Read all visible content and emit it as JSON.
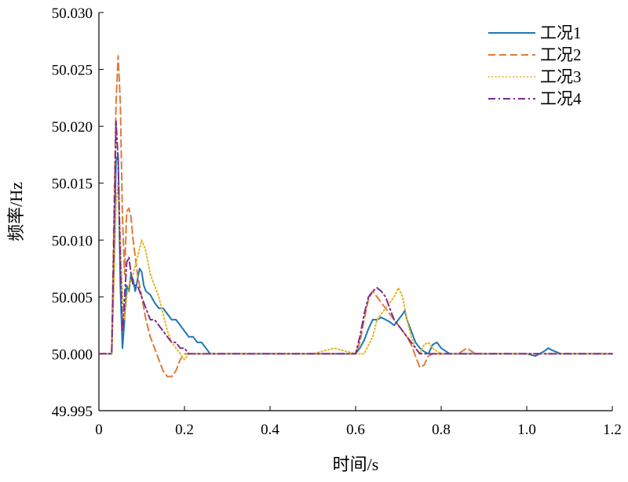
{
  "chart_data": {
    "type": "line",
    "xlabel": "时间/s",
    "ylabel": "频率/Hz",
    "xlim": [
      0,
      1.2
    ],
    "ylim": [
      49.995,
      50.03
    ],
    "x_ticks": [
      0,
      0.2,
      0.4,
      0.6,
      0.8,
      1.0,
      1.2
    ],
    "x_tick_labels": [
      "0",
      "0.2",
      "0.4",
      "0.6",
      "0.8",
      "1.0",
      "1.2"
    ],
    "y_ticks": [
      49.995,
      50.0,
      50.005,
      50.01,
      50.015,
      50.02,
      50.025,
      50.03
    ],
    "y_tick_labels": [
      "49.995",
      "50.000",
      "50.005",
      "50.010",
      "50.015",
      "50.020",
      "50.025",
      "50.030"
    ],
    "grid": false,
    "legend_position": "top-right",
    "series": [
      {
        "name": "工况1",
        "color": "#1f77b4",
        "dash": "solid",
        "x": [
          0,
          0.025,
          0.03,
          0.035,
          0.04,
          0.045,
          0.05,
          0.055,
          0.06,
          0.065,
          0.07,
          0.075,
          0.08,
          0.085,
          0.09,
          0.095,
          0.1,
          0.105,
          0.11,
          0.12,
          0.13,
          0.14,
          0.15,
          0.16,
          0.17,
          0.18,
          0.19,
          0.2,
          0.21,
          0.22,
          0.23,
          0.24,
          0.25,
          0.26,
          0.28,
          0.3,
          0.32,
          0.35,
          0.4,
          0.45,
          0.5,
          0.55,
          0.6,
          0.61,
          0.62,
          0.63,
          0.64,
          0.65,
          0.66,
          0.67,
          0.68,
          0.69,
          0.7,
          0.71,
          0.715,
          0.72,
          0.73,
          0.74,
          0.75,
          0.76,
          0.77,
          0.78,
          0.79,
          0.8,
          0.82,
          0.85,
          0.9,
          0.95,
          1.0,
          1.02,
          1.04,
          1.05,
          1.06,
          1.08,
          1.1,
          1.15,
          1.2
        ],
        "values": [
          50.0,
          50.0,
          50.0,
          50.008,
          50.017,
          50.0175,
          50.006,
          50.0005,
          50.003,
          50.006,
          50.0055,
          50.007,
          50.0065,
          50.0055,
          50.0065,
          50.0075,
          50.0072,
          50.006,
          50.0055,
          50.0052,
          50.0045,
          50.004,
          50.004,
          50.0035,
          50.003,
          50.003,
          50.0025,
          50.002,
          50.0015,
          50.0015,
          50.001,
          50.001,
          50.0005,
          50.0,
          50.0,
          50.0,
          50.0,
          50.0,
          50.0,
          50.0,
          50.0,
          50.0,
          50.0,
          50.0005,
          50.0012,
          50.0022,
          50.003,
          50.003,
          50.0032,
          50.003,
          50.0028,
          50.0025,
          50.003,
          50.0035,
          50.0038,
          50.003,
          50.002,
          50.001,
          50.0005,
          50.0002,
          50.0,
          50.0008,
          50.001,
          50.0005,
          50.0,
          50.0,
          50.0,
          50.0,
          50.0,
          49.9998,
          50.0002,
          50.0005,
          50.0003,
          50.0,
          50.0,
          50.0,
          50.0
        ]
      },
      {
        "name": "工况2",
        "color": "#e07b39",
        "dash": "dashed",
        "x": [
          0,
          0.025,
          0.03,
          0.035,
          0.04,
          0.045,
          0.05,
          0.055,
          0.06,
          0.065,
          0.07,
          0.075,
          0.08,
          0.09,
          0.1,
          0.11,
          0.12,
          0.13,
          0.14,
          0.15,
          0.16,
          0.17,
          0.18,
          0.19,
          0.2,
          0.21,
          0.22,
          0.23,
          0.24,
          0.25,
          0.27,
          0.3,
          0.35,
          0.4,
          0.45,
          0.5,
          0.55,
          0.6,
          0.61,
          0.62,
          0.63,
          0.64,
          0.65,
          0.66,
          0.67,
          0.68,
          0.69,
          0.7,
          0.71,
          0.72,
          0.73,
          0.74,
          0.75,
          0.76,
          0.77,
          0.78,
          0.8,
          0.82,
          0.84,
          0.86,
          0.88,
          0.9,
          0.95,
          1.0,
          1.05,
          1.1,
          1.15,
          1.2
        ],
        "values": [
          50.0,
          50.0,
          50.0,
          50.012,
          50.022,
          50.0262,
          50.022,
          50.012,
          50.007,
          50.0125,
          50.0128,
          50.012,
          50.01,
          50.007,
          50.005,
          50.003,
          50.0015,
          50.0005,
          49.9995,
          49.9985,
          49.998,
          49.998,
          49.9985,
          49.9995,
          50.0,
          50.0,
          50.0,
          50.0,
          50.0,
          50.0,
          50.0,
          50.0,
          50.0,
          50.0,
          50.0,
          50.0,
          50.0,
          50.0,
          50.001,
          50.003,
          50.0048,
          50.0055,
          50.005,
          50.0045,
          50.004,
          50.0035,
          50.003,
          50.0025,
          50.002,
          50.0015,
          50.0008,
          49.9998,
          49.9988,
          49.999,
          49.9998,
          50.0,
          50.0,
          50.0,
          50.0,
          50.0005,
          50.0,
          50.0,
          50.0,
          50.0,
          50.0,
          50.0,
          50.0,
          50.0
        ]
      },
      {
        "name": "工况3",
        "color": "#e6b422",
        "dash": "dotted",
        "x": [
          0,
          0.025,
          0.03,
          0.035,
          0.04,
          0.045,
          0.05,
          0.055,
          0.06,
          0.065,
          0.07,
          0.075,
          0.08,
          0.09,
          0.1,
          0.11,
          0.12,
          0.13,
          0.14,
          0.15,
          0.16,
          0.17,
          0.18,
          0.19,
          0.2,
          0.21,
          0.22,
          0.23,
          0.25,
          0.3,
          0.35,
          0.4,
          0.45,
          0.5,
          0.55,
          0.6,
          0.62,
          0.64,
          0.65,
          0.66,
          0.67,
          0.68,
          0.69,
          0.7,
          0.71,
          0.72,
          0.73,
          0.74,
          0.75,
          0.76,
          0.77,
          0.78,
          0.8,
          0.82,
          0.85,
          0.9,
          0.95,
          1.0,
          1.05,
          1.1,
          1.15,
          1.2
        ],
        "values": [
          50.0,
          50.0,
          50.0,
          50.006,
          50.013,
          50.015,
          50.01,
          50.005,
          50.003,
          50.005,
          50.006,
          50.0065,
          50.007,
          50.0085,
          50.01,
          50.009,
          50.007,
          50.006,
          50.005,
          50.0035,
          50.002,
          50.001,
          50.0005,
          50.0,
          49.9995,
          50.0,
          50.0,
          50.0,
          50.0,
          50.0,
          50.0,
          50.0,
          50.0,
          50.0,
          50.0005,
          50.0,
          50.0,
          50.0015,
          50.003,
          50.0035,
          50.004,
          50.0045,
          50.005,
          50.0058,
          50.005,
          50.003,
          50.0015,
          50.0005,
          50.0,
          50.0008,
          50.001,
          50.0005,
          50.0,
          50.0,
          50.0,
          50.0,
          50.0,
          50.0,
          50.0,
          50.0,
          50.0,
          50.0
        ]
      },
      {
        "name": "工况4",
        "color": "#7b2d8e",
        "dash": "dashdot",
        "x": [
          0,
          0.025,
          0.03,
          0.035,
          0.04,
          0.045,
          0.05,
          0.055,
          0.06,
          0.065,
          0.07,
          0.075,
          0.08,
          0.09,
          0.1,
          0.11,
          0.12,
          0.13,
          0.14,
          0.15,
          0.16,
          0.17,
          0.18,
          0.19,
          0.2,
          0.21,
          0.22,
          0.23,
          0.24,
          0.25,
          0.3,
          0.35,
          0.4,
          0.45,
          0.5,
          0.55,
          0.6,
          0.61,
          0.62,
          0.63,
          0.64,
          0.65,
          0.66,
          0.67,
          0.68,
          0.69,
          0.7,
          0.71,
          0.72,
          0.73,
          0.74,
          0.75,
          0.76,
          0.77,
          0.78,
          0.8,
          0.82,
          0.85,
          0.9,
          0.95,
          1.0,
          1.05,
          1.1,
          1.15,
          1.2
        ],
        "values": [
          50.0,
          50.0,
          50.0,
          50.01,
          50.0205,
          50.017,
          50.008,
          50.002,
          50.005,
          50.008,
          50.0085,
          50.007,
          50.006,
          50.006,
          50.005,
          50.004,
          50.003,
          50.003,
          50.0025,
          50.002,
          50.0015,
          50.001,
          50.001,
          50.0005,
          50.0005,
          50.0,
          50.0,
          50.0,
          50.0,
          50.0,
          50.0,
          50.0,
          50.0,
          50.0,
          50.0,
          50.0,
          50.0,
          50.0015,
          50.0035,
          50.005,
          50.0055,
          50.0058,
          50.0055,
          50.005,
          50.004,
          50.003,
          50.0025,
          50.002,
          50.0015,
          50.001,
          50.0005,
          50.0,
          50.0,
          50.0,
          50.0,
          50.0,
          50.0,
          50.0,
          50.0,
          50.0,
          50.0,
          50.0,
          50.0,
          50.0,
          50.0
        ]
      }
    ]
  }
}
